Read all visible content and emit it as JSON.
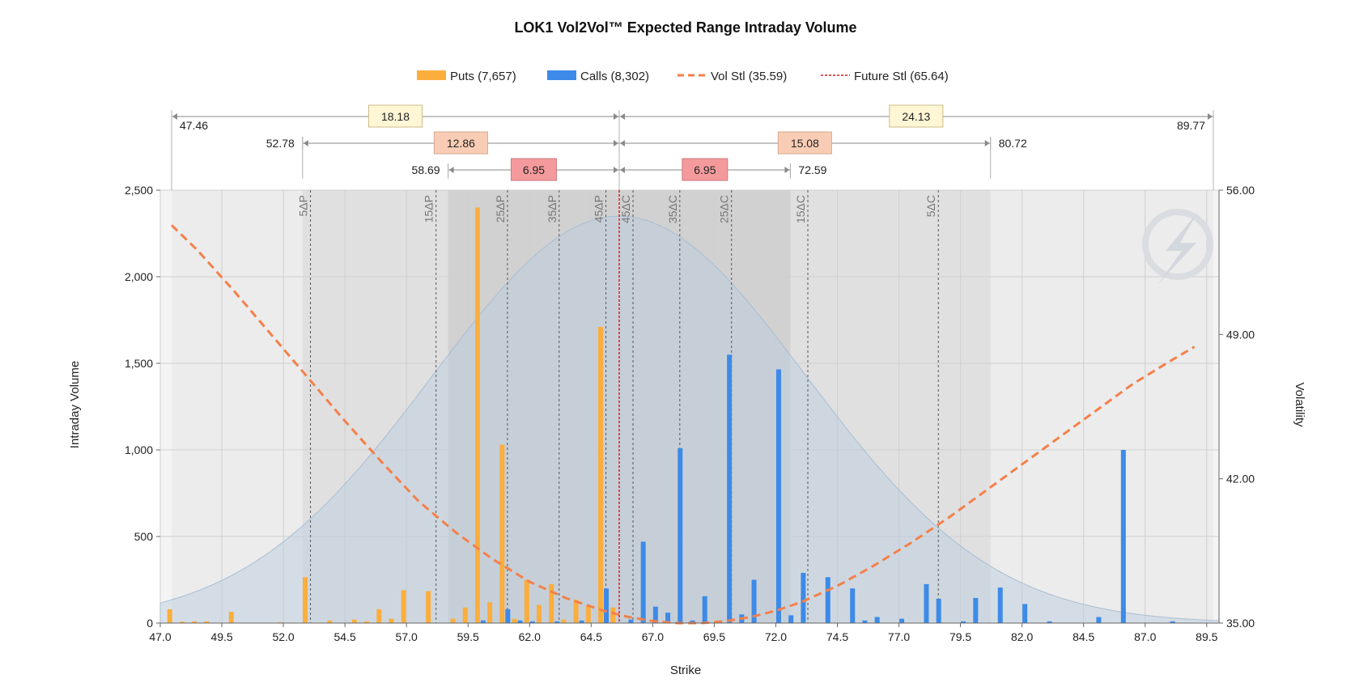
{
  "chart_data": {
    "type": "bar",
    "title": "LOK1 Vol2Vol™ Expected Range Intraday Volume",
    "xlabel": "Strike",
    "ylabel": "Intraday Volume",
    "y2label": "Volatility",
    "xlim": [
      47.0,
      90.0
    ],
    "ylim": [
      0,
      2500
    ],
    "y2lim": [
      35,
      56
    ],
    "x_ticks": [
      "47.0",
      "49.5",
      "52.0",
      "54.5",
      "57.0",
      "59.5",
      "62.0",
      "64.5",
      "67.0",
      "69.5",
      "72.0",
      "74.5",
      "77.0",
      "79.5",
      "82.0",
      "84.5",
      "87.0",
      "89.5"
    ],
    "y_ticks": [
      "0",
      "500",
      "1,000",
      "1,500",
      "2,000",
      "2,500"
    ],
    "y2_ticks": [
      "35.00",
      "42.00",
      "49.00",
      "56.00"
    ],
    "legend": {
      "placement": "top",
      "puts": "Puts (7,657)",
      "calls": "Calls (8,302)",
      "vol": "Vol Stl (35.59)",
      "future": "Future Stl (65.64)"
    },
    "colors": {
      "puts": "#FBAE3C",
      "calls": "#3D8AE8",
      "vol": "#F4804A",
      "future": "#E01A1A"
    },
    "future_settle": 65.64,
    "puts": [
      {
        "x": 47.5,
        "v": 80
      },
      {
        "x": 48.0,
        "v": 8
      },
      {
        "x": 48.5,
        "v": 10
      },
      {
        "x": 49.0,
        "v": 10
      },
      {
        "x": 50.0,
        "v": 65
      },
      {
        "x": 52.0,
        "v": 5
      },
      {
        "x": 53.0,
        "v": 265
      },
      {
        "x": 54.0,
        "v": 15
      },
      {
        "x": 55.0,
        "v": 20
      },
      {
        "x": 55.5,
        "v": 10
      },
      {
        "x": 56.0,
        "v": 80
      },
      {
        "x": 56.5,
        "v": 25
      },
      {
        "x": 57.0,
        "v": 190
      },
      {
        "x": 58.0,
        "v": 185
      },
      {
        "x": 59.0,
        "v": 25
      },
      {
        "x": 59.5,
        "v": 90
      },
      {
        "x": 60.0,
        "v": 2400
      },
      {
        "x": 60.5,
        "v": 120
      },
      {
        "x": 61.0,
        "v": 1030
      },
      {
        "x": 61.5,
        "v": 25
      },
      {
        "x": 62.0,
        "v": 250
      },
      {
        "x": 62.5,
        "v": 105
      },
      {
        "x": 63.0,
        "v": 225
      },
      {
        "x": 63.5,
        "v": 20
      },
      {
        "x": 64.0,
        "v": 135
      },
      {
        "x": 64.5,
        "v": 100
      },
      {
        "x": 65.0,
        "v": 1710
      },
      {
        "x": 65.5,
        "v": 90
      }
    ],
    "calls": [
      {
        "x": 60.0,
        "v": 15
      },
      {
        "x": 61.0,
        "v": 80
      },
      {
        "x": 61.5,
        "v": 15
      },
      {
        "x": 62.0,
        "v": 10
      },
      {
        "x": 63.0,
        "v": 10
      },
      {
        "x": 64.0,
        "v": 15
      },
      {
        "x": 65.0,
        "v": 200
      },
      {
        "x": 66.0,
        "v": 20
      },
      {
        "x": 66.5,
        "v": 470
      },
      {
        "x": 67.0,
        "v": 95
      },
      {
        "x": 67.5,
        "v": 60
      },
      {
        "x": 68.0,
        "v": 1010
      },
      {
        "x": 68.5,
        "v": 15
      },
      {
        "x": 69.0,
        "v": 155
      },
      {
        "x": 70.0,
        "v": 1550
      },
      {
        "x": 70.5,
        "v": 50
      },
      {
        "x": 71.0,
        "v": 250
      },
      {
        "x": 72.0,
        "v": 1465
      },
      {
        "x": 72.5,
        "v": 45
      },
      {
        "x": 73.0,
        "v": 290
      },
      {
        "x": 74.0,
        "v": 265
      },
      {
        "x": 75.0,
        "v": 200
      },
      {
        "x": 75.5,
        "v": 15
      },
      {
        "x": 76.0,
        "v": 35
      },
      {
        "x": 77.0,
        "v": 25
      },
      {
        "x": 78.0,
        "v": 225
      },
      {
        "x": 78.5,
        "v": 140
      },
      {
        "x": 79.5,
        "v": 10
      },
      {
        "x": 80.0,
        "v": 145
      },
      {
        "x": 81.0,
        "v": 205
      },
      {
        "x": 82.0,
        "v": 110
      },
      {
        "x": 83.0,
        "v": 10
      },
      {
        "x": 85.0,
        "v": 35
      },
      {
        "x": 86.0,
        "v": 1000
      },
      {
        "x": 88.0,
        "v": 10
      }
    ],
    "vol_curve": {
      "x": [
        47.46,
        48.5,
        50.0,
        51.5,
        53.0,
        54.5,
        56.0,
        57.5,
        59.0,
        60.5,
        62.0,
        63.5,
        65.0,
        66.0,
        67.0,
        68.0,
        69.0,
        70.0,
        71.0,
        72.0,
        73.0,
        74.5,
        76.0,
        77.5,
        79.0,
        80.5,
        82.0,
        83.5,
        85.0,
        86.5,
        88.0,
        89.0
      ],
      "y": [
        54.3,
        53.1,
        51.1,
        49.0,
        46.9,
        44.8,
        42.8,
        40.9,
        39.4,
        38.1,
        37.0,
        36.2,
        35.6,
        35.3,
        35.1,
        35.0,
        35.0,
        35.1,
        35.3,
        35.6,
        36.0,
        36.8,
        37.8,
        38.9,
        40.1,
        41.4,
        42.7,
        44.0,
        45.3,
        46.6,
        47.7,
        48.4
      ]
    },
    "ranges": [
      {
        "label": "18.18",
        "x": 56.55,
        "from": 47.46,
        "to": 65.64,
        "side": "put",
        "level": 1
      },
      {
        "label": "24.13",
        "x": 77.7,
        "from": 65.64,
        "to": 89.77,
        "side": "call",
        "level": 1
      },
      {
        "label": "12.86",
        "x": 59.21,
        "from": 52.78,
        "to": 65.64,
        "side": "put",
        "level": 2
      },
      {
        "label": "15.08",
        "x": 73.18,
        "from": 65.64,
        "to": 80.72,
        "side": "call",
        "level": 2
      },
      {
        "label": "6.95",
        "x": 62.17,
        "from": 58.69,
        "to": 65.64,
        "side": "put",
        "level": 3
      },
      {
        "label": "6.95",
        "x": 69.12,
        "from": 65.64,
        "to": 72.59,
        "side": "call",
        "level": 3
      }
    ],
    "range_bounds": [
      {
        "text": "47.46",
        "x": 47.46,
        "level": 1,
        "anchor": "left"
      },
      {
        "text": "89.77",
        "x": 89.77,
        "level": 1,
        "anchor": "right"
      },
      {
        "text": "52.78",
        "x": 52.78,
        "level": 2,
        "anchor": "right"
      },
      {
        "text": "80.72",
        "x": 80.72,
        "level": 2,
        "anchor": "left"
      },
      {
        "text": "58.69",
        "x": 58.69,
        "level": 3,
        "anchor": "right"
      },
      {
        "text": "72.59",
        "x": 72.59,
        "level": 3,
        "anchor": "left"
      }
    ],
    "delta_lines": [
      {
        "label": "5ΔP",
        "x": 53.1
      },
      {
        "label": "15ΔP",
        "x": 58.2
      },
      {
        "label": "25ΔP",
        "x": 61.1
      },
      {
        "label": "35ΔP",
        "x": 63.2
      },
      {
        "label": "45ΔP",
        "x": 65.1
      },
      {
        "label": "45ΔC",
        "x": 66.2
      },
      {
        "label": "35ΔC",
        "x": 68.1
      },
      {
        "label": "25ΔC",
        "x": 70.2
      },
      {
        "label": "15ΔC",
        "x": 73.3
      },
      {
        "label": "5ΔC",
        "x": 78.6
      }
    ],
    "grid": true
  }
}
